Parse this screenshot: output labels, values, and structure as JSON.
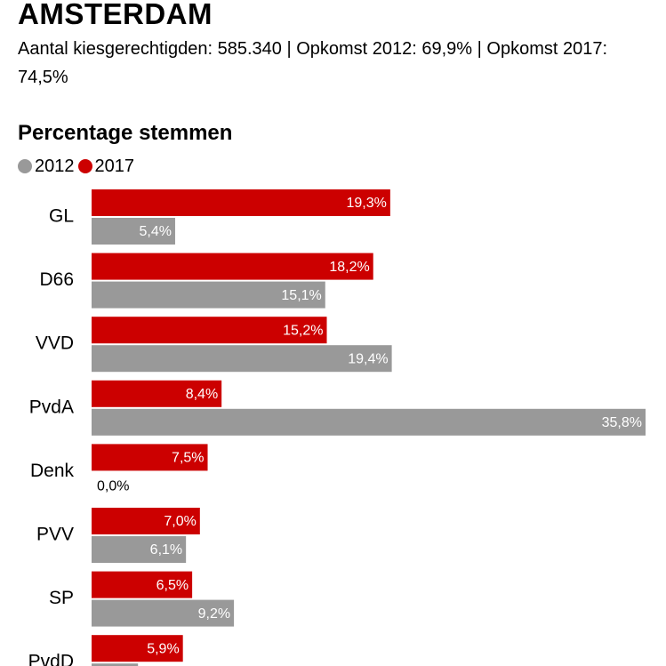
{
  "header": {
    "title": "AMSTERDAM",
    "subtitle": "Aantal kiesgerechtigden: 585.340 | Opkomst 2012: 69,9% | Opkomst 2017: 74,5%"
  },
  "colors": {
    "series_2017": "#cc0000",
    "series_2012": "#999999"
  },
  "chart_data": {
    "type": "bar",
    "orientation": "horizontal",
    "title": "Percentage stemmen",
    "legend_position": "top-left",
    "categories": [
      "GL",
      "D66",
      "VVD",
      "PvdA",
      "Denk",
      "PVV",
      "SP",
      "PvdD"
    ],
    "series": [
      {
        "name": "2017",
        "values": [
          19.3,
          18.2,
          15.2,
          8.4,
          7.5,
          7.0,
          6.5,
          5.9
        ],
        "labels": [
          "19,3%",
          "18,2%",
          "15,2%",
          "8,4%",
          "7,5%",
          "7,0%",
          "6,5%",
          "5,9%"
        ]
      },
      {
        "name": "2012",
        "values": [
          5.4,
          15.1,
          19.4,
          35.8,
          0.0,
          6.1,
          9.2,
          3.0
        ],
        "labels": [
          "5,4%",
          "15,1%",
          "19,4%",
          "35,8%",
          "0,0%",
          "6,1%",
          "9,2%",
          ""
        ]
      }
    ],
    "legend_order": [
      "2012",
      "2017"
    ],
    "xlim": [
      0,
      35.8
    ],
    "grid": false
  }
}
